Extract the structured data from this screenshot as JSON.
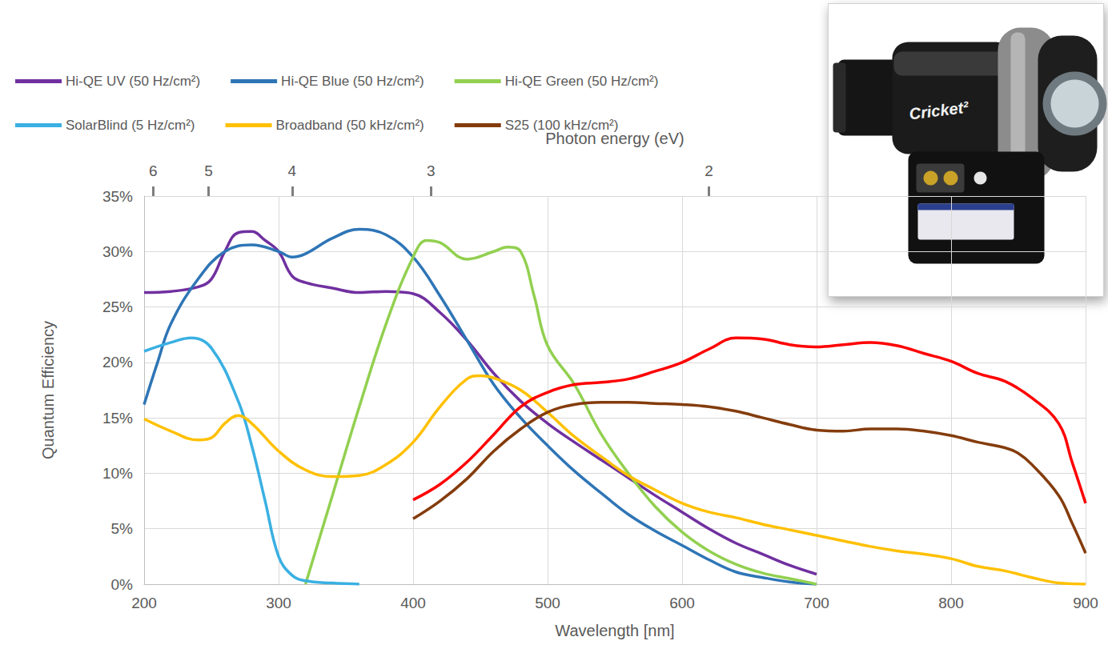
{
  "chart_data": {
    "type": "line",
    "xlabel": "Wavelength [nm]",
    "ylabel": "Quantum Efficiency",
    "x2label": "Photon energy (eV)",
    "xlim": [
      200,
      900
    ],
    "xticks": [
      200,
      300,
      400,
      500,
      600,
      700,
      800,
      900
    ],
    "x2ticks": [
      {
        "value": 206.7,
        "label": "6"
      },
      {
        "value": 248,
        "label": "5"
      },
      {
        "value": 310,
        "label": "4"
      },
      {
        "value": 413.3,
        "label": "3"
      },
      {
        "value": 620,
        "label": "2"
      }
    ],
    "ylim": [
      0,
      35
    ],
    "yticks": [
      {
        "value": 0,
        "label": "0%"
      },
      {
        "value": 5,
        "label": "5%"
      },
      {
        "value": 10,
        "label": "10%"
      },
      {
        "value": 15,
        "label": "15%"
      },
      {
        "value": 20,
        "label": "20%"
      },
      {
        "value": 25,
        "label": "25%"
      },
      {
        "value": 30,
        "label": "30%"
      },
      {
        "value": 35,
        "label": "35%"
      }
    ],
    "grid": true,
    "legend": "top",
    "inset_text": "Cricket²",
    "series": [
      {
        "name": "Hi-QE UV (50 Hz/cm²)",
        "color": "#7030A0",
        "x": [
          200,
          220,
          240,
          250,
          260,
          270,
          280,
          290,
          300,
          310,
          320,
          340,
          360,
          380,
          400,
          420,
          440,
          460,
          480,
          500,
          520,
          540,
          560,
          580,
          600,
          620,
          640,
          660,
          680,
          700
        ],
        "values": [
          26.3,
          26.4,
          26.8,
          27.5,
          30,
          31.7,
          31.8,
          31,
          30,
          27.8,
          27.2,
          26.7,
          26.3,
          26.4,
          26.2,
          24.5,
          22,
          19,
          16.5,
          14.5,
          12.8,
          11.2,
          9.6,
          8,
          6.5,
          5,
          3.7,
          2.7,
          1.7,
          0.9
        ]
      },
      {
        "name": "Hi-QE Blue (50 Hz/cm²)",
        "color": "#2E75B6",
        "x": [
          200,
          210,
          220,
          240,
          260,
          280,
          300,
          310,
          320,
          340,
          360,
          380,
          400,
          420,
          440,
          460,
          480,
          500,
          520,
          540,
          560,
          580,
          600,
          620,
          640,
          660,
          680,
          700
        ],
        "values": [
          16.2,
          20,
          23.5,
          27.5,
          30,
          30.6,
          30,
          29.5,
          29.8,
          31.2,
          32,
          31.5,
          29.5,
          26,
          22,
          18,
          15,
          12.5,
          10.2,
          8.2,
          6.3,
          4.8,
          3.5,
          2.2,
          1.1,
          0.6,
          0.2,
          0
        ]
      },
      {
        "name": "Hi-QE Green (50 Hz/cm²)",
        "color": "#92D050",
        "x": [
          320,
          340,
          360,
          380,
          400,
          410,
          420,
          440,
          460,
          470,
          480,
          490,
          500,
          520,
          540,
          560,
          580,
          600,
          620,
          640,
          660,
          680,
          700
        ],
        "values": [
          0,
          8,
          16,
          23.5,
          29.5,
          31,
          30.8,
          29.3,
          30,
          30.4,
          30,
          26,
          21.5,
          18,
          13.5,
          10,
          7,
          4.7,
          3,
          1.8,
          1,
          0.5,
          0
        ]
      },
      {
        "name": "SolarBlind (5 Hz/cm²)",
        "color": "#3AB0E2",
        "x": [
          200,
          220,
          235,
          250,
          270,
          280,
          290,
          300,
          310,
          320,
          340,
          360
        ],
        "values": [
          21,
          21.8,
          22.2,
          21.3,
          16.5,
          12.5,
          7.5,
          2.5,
          0.8,
          0.3,
          0.1,
          0
        ]
      },
      {
        "name": "Broadband (50 kHz/cm²)",
        "color": "#FFC000",
        "x": [
          200,
          220,
          240,
          250,
          260,
          270,
          280,
          300,
          320,
          340,
          360,
          380,
          400,
          420,
          440,
          450,
          460,
          480,
          500,
          520,
          540,
          560,
          580,
          600,
          620,
          640,
          660,
          680,
          700,
          720,
          740,
          760,
          780,
          800,
          820,
          840,
          860,
          880,
          900
        ],
        "values": [
          14.9,
          13.8,
          13,
          13.2,
          14.5,
          15.2,
          14.5,
          12,
          10.3,
          9.7,
          9.8,
          10.8,
          12.8,
          16,
          18.5,
          18.8,
          18.6,
          17.5,
          15.5,
          13.3,
          11.5,
          9.8,
          8.5,
          7.3,
          6.5,
          6,
          5.4,
          4.9,
          4.4,
          3.9,
          3.4,
          3,
          2.7,
          2.3,
          1.6,
          1.2,
          0.6,
          0.1,
          0
        ]
      },
      {
        "name": "S25 (100 kHz/cm²)",
        "color": "#843C0C",
        "x": [
          400,
          420,
          440,
          460,
          480,
          500,
          520,
          540,
          560,
          580,
          600,
          620,
          640,
          660,
          680,
          700,
          720,
          740,
          760,
          780,
          800,
          820,
          840,
          850,
          860,
          880,
          890,
          900
        ],
        "values": [
          5.9,
          7.5,
          9.5,
          12,
          14,
          15.5,
          16.2,
          16.4,
          16.4,
          16.3,
          16.2,
          16,
          15.6,
          15,
          14.4,
          13.9,
          13.8,
          14,
          14,
          13.8,
          13.4,
          12.8,
          12.3,
          11.8,
          10.8,
          8,
          5.5,
          2.8
        ]
      },
      {
        "color": "#FF0000",
        "x": [
          400,
          420,
          440,
          460,
          480,
          500,
          520,
          540,
          560,
          580,
          600,
          620,
          640,
          660,
          680,
          700,
          720,
          740,
          760,
          780,
          800,
          820,
          840,
          860,
          880,
          890,
          900
        ],
        "values": [
          7.6,
          9,
          11,
          13.5,
          16,
          17.3,
          18,
          18.2,
          18.5,
          19.2,
          20,
          21.2,
          22.2,
          22.1,
          21.6,
          21.4,
          21.6,
          21.8,
          21.5,
          20.8,
          20.1,
          19,
          18.3,
          16.8,
          14.5,
          11,
          7.3
        ]
      }
    ]
  }
}
